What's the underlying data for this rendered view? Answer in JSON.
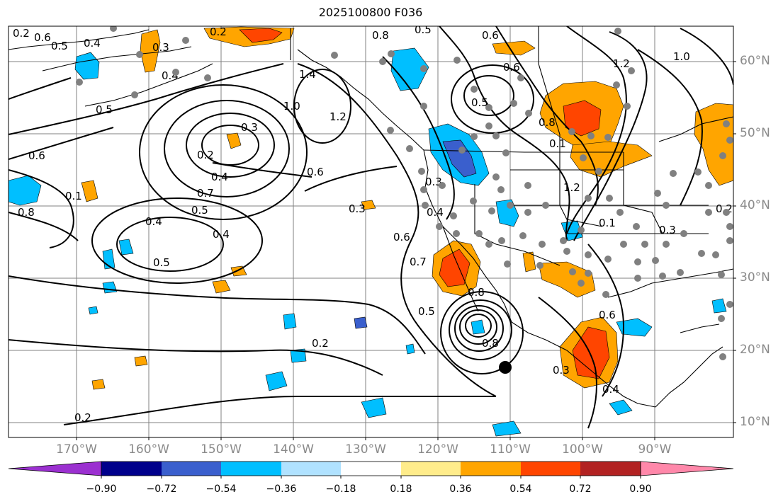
{
  "title": "2025100800 F036",
  "latitude_labels": [
    "60°N",
    "50°N",
    "40°N",
    "30°N",
    "20°N",
    "10°N"
  ],
  "longitude_labels": [
    "170°W",
    "160°W",
    "150°W",
    "140°W",
    "130°W",
    "120°W",
    "110°W",
    "100°W",
    "90°W"
  ],
  "colorbar": {
    "tick_labels": [
      "−0.90",
      "−0.72",
      "−0.54",
      "−0.36",
      "−0.18",
      "0.18",
      "0.36",
      "0.54",
      "0.72",
      "0.90"
    ],
    "colors": [
      "#9b30d0",
      "#00008b",
      "#3a5fcd",
      "#00bfff",
      "#b0e2ff",
      "#ffffff",
      "#ffec8b",
      "#ffa500",
      "#ff4500",
      "#b22222",
      "#ff88aa",
      "#ff88aa"
    ]
  },
  "shading_colors": {
    "light_orange": "#ffa500",
    "red_orange": "#ff4500",
    "sky_blue": "#00bfff",
    "royal_blue": "#3a5fcd"
  },
  "contour_labels": [
    "0.1",
    "0.2",
    "0.3",
    "0.4",
    "0.5",
    "0.6",
    "0.7",
    "0.8",
    "1.0",
    "1.2",
    "1.4"
  ],
  "station_marker_color": "#808080"
}
